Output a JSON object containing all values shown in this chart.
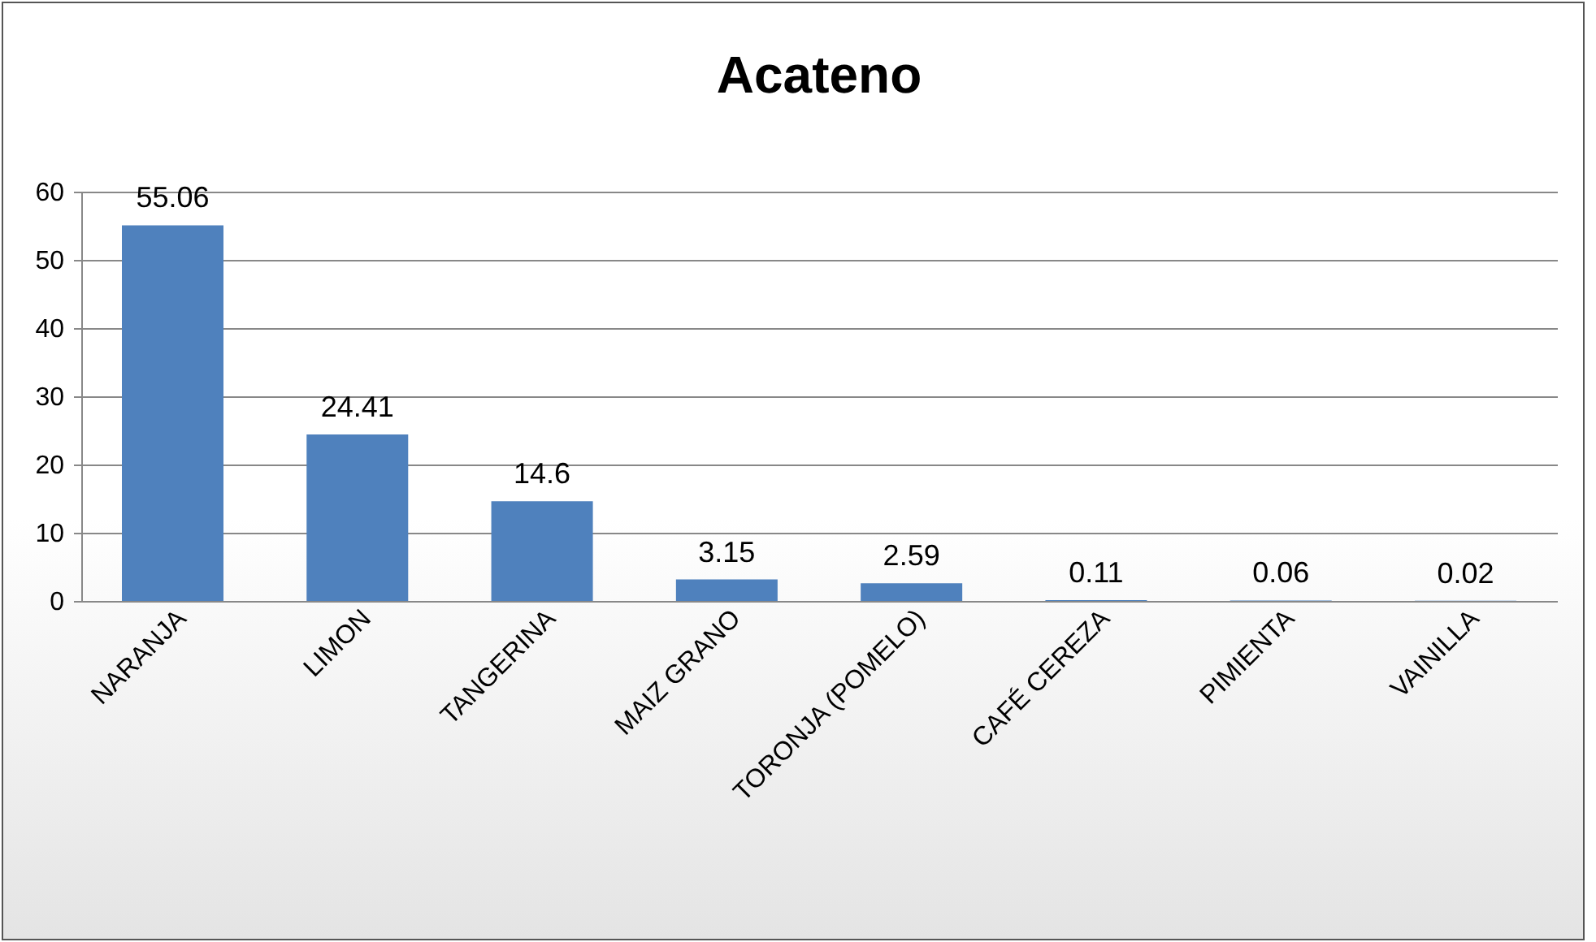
{
  "chart_data": {
    "type": "bar",
    "title": "Acateno",
    "categories": [
      "NARANJA",
      "LIMON",
      "TANGERINA",
      "MAIZ GRANO",
      "TORONJA (POMELO)",
      "CAFÉ CEREZA",
      "PIMIENTA",
      "VAINILLA"
    ],
    "values": [
      55.06,
      24.41,
      14.6,
      3.15,
      2.59,
      0.11,
      0.06,
      0.02
    ],
    "color": "#4f81bd",
    "ylim": [
      0,
      60
    ],
    "yticks": [
      0,
      10,
      20,
      30,
      40,
      50,
      60
    ],
    "grid": "y",
    "data_labels": true
  }
}
